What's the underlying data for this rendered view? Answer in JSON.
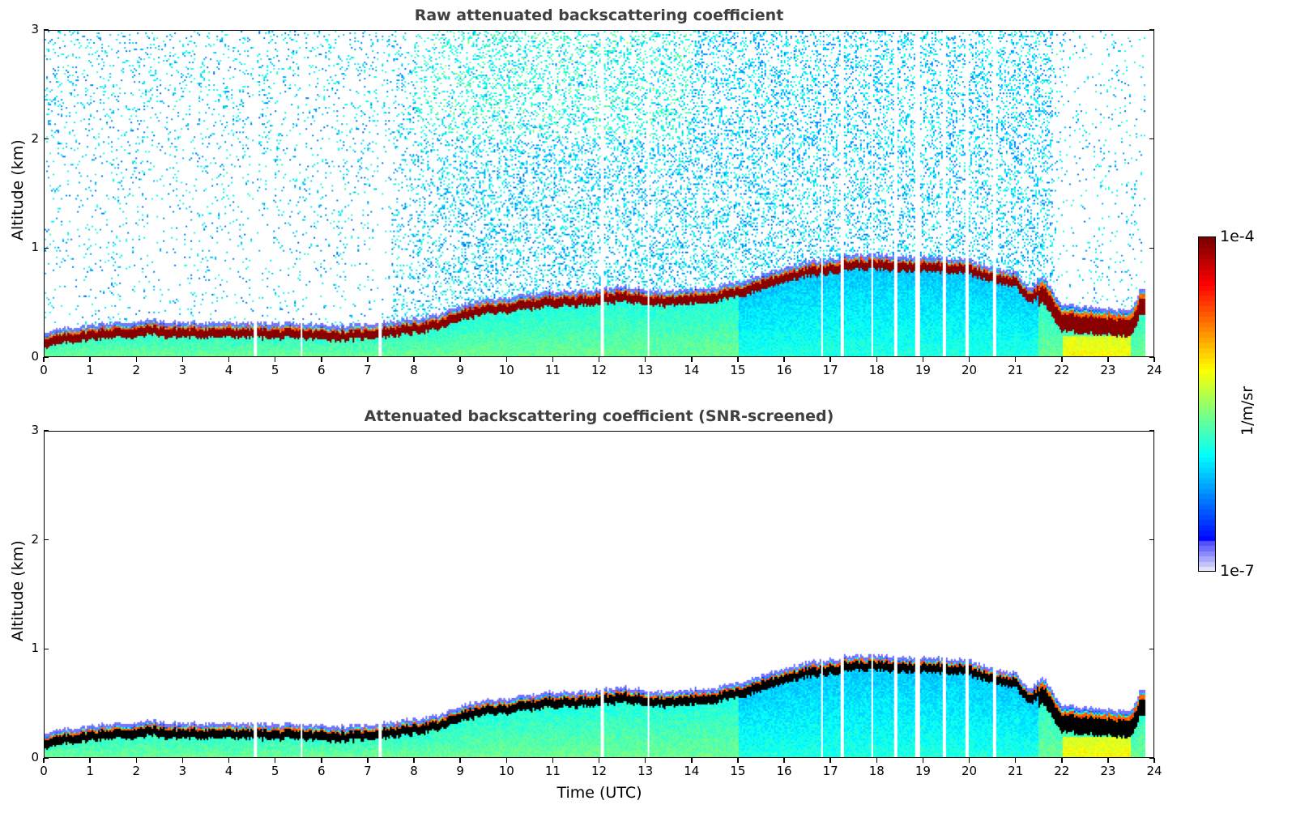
{
  "chart_data": [
    {
      "type": "heatmap",
      "title": "Raw attenuated backscattering coefficient",
      "xlabel": "",
      "ylabel": "Altitude (km)",
      "xlim": [
        0,
        24
      ],
      "ylim": [
        0,
        3
      ],
      "xticks": [
        "0",
        "1",
        "2",
        "3",
        "4",
        "5",
        "6",
        "7",
        "8",
        "9",
        "10",
        "11",
        "12",
        "13",
        "14",
        "15",
        "16",
        "17",
        "18",
        "19",
        "20",
        "21",
        "22",
        "23",
        "24"
      ],
      "yticks": [
        "0",
        "1",
        "2",
        "3"
      ],
      "variant": "raw"
    },
    {
      "type": "heatmap",
      "title": "Attenuated backscattering coefficient (SNR-screened)",
      "xlabel": "Time (UTC)",
      "ylabel": "Altitude (km)",
      "xlim": [
        0,
        24
      ],
      "ylim": [
        0,
        3
      ],
      "xticks": [
        "0",
        "1",
        "2",
        "3",
        "4",
        "5",
        "6",
        "7",
        "8",
        "9",
        "10",
        "11",
        "12",
        "13",
        "14",
        "15",
        "16",
        "17",
        "18",
        "19",
        "20",
        "21",
        "22",
        "23",
        "24"
      ],
      "yticks": [
        "0",
        "1",
        "2",
        "3"
      ],
      "variant": "screened"
    }
  ],
  "colorbar": {
    "label": "1/m/sr",
    "max_label": "1e-4",
    "min_label": "1e-7",
    "scale": "log",
    "range": [
      1e-07,
      0.0001
    ]
  },
  "layer_profile": {
    "hours": [
      0,
      0.5,
      1,
      1.5,
      2,
      2.3,
      2.6,
      3,
      4,
      5,
      6,
      6.5,
      7,
      7.5,
      8,
      8.5,
      9,
      9.5,
      10,
      10.5,
      11,
      11.5,
      12,
      12.5,
      13,
      13.5,
      14,
      14.5,
      15,
      15.5,
      16,
      16.5,
      17,
      17.5,
      18,
      18.5,
      19,
      19.5,
      20,
      20.5,
      21,
      21.3,
      21.6,
      22,
      22.5,
      23,
      23.5,
      23.7
    ],
    "top_km": [
      0.2,
      0.24,
      0.27,
      0.29,
      0.29,
      0.32,
      0.29,
      0.29,
      0.29,
      0.28,
      0.27,
      0.26,
      0.28,
      0.3,
      0.33,
      0.36,
      0.45,
      0.5,
      0.52,
      0.55,
      0.58,
      0.58,
      0.6,
      0.62,
      0.6,
      0.58,
      0.6,
      0.62,
      0.66,
      0.73,
      0.8,
      0.85,
      0.88,
      0.92,
      0.91,
      0.9,
      0.9,
      0.89,
      0.87,
      0.8,
      0.75,
      0.6,
      0.72,
      0.45,
      0.44,
      0.42,
      0.4,
      0.6
    ],
    "data_end_hour": 23.8
  },
  "gaps_hours": [
    4.55,
    5.55,
    7.25,
    12.05,
    13.05,
    16.8,
    17.25,
    17.9,
    18.4,
    18.85,
    18.9,
    19.45,
    19.95,
    20.55
  ]
}
